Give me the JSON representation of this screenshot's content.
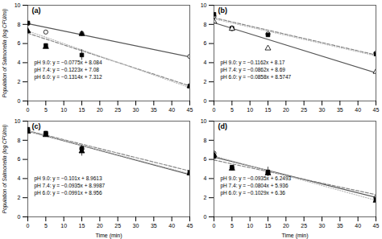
{
  "chart_data": [
    {
      "type": "scatter",
      "title": "(a)",
      "ylabel": "Population of Salmonella (log CFU/ml)",
      "annotations": [
        "pH 9.0: y = −0.0775x + 8.084",
        "pH 7.4: y = −0.1223x + 7.08",
        "pH 6.0: y = −0.1314x + 7.312"
      ],
      "series": [
        {
          "type": "line",
          "line_style": "solid",
          "color": "#555555",
          "slope": -0.0775,
          "intercept": 8.084
        },
        {
          "type": "line",
          "line_style": "dashed",
          "color": "#888888",
          "slope": -0.1223,
          "intercept": 7.08
        },
        {
          "type": "line",
          "line_style": "dotted",
          "color": "#bbbbbb",
          "slope": -0.1314,
          "intercept": 7.312
        },
        {
          "type": "scatter",
          "marker": "open_circle",
          "color": "black",
          "x": [
            0,
            5,
            15,
            45
          ],
          "values": [
            8.1,
            7.2,
            7.05,
            4.65
          ],
          "yerr": [
            0.05,
            0.0,
            0.15,
            0.05
          ]
        },
        {
          "type": "scatter",
          "marker": "square",
          "color": "black",
          "x": [
            0,
            5,
            15,
            45
          ],
          "values": [
            8.15,
            5.8,
            4.8,
            1.55
          ],
          "yerr": [
            0.05,
            0.15,
            0.55,
            0.1
          ]
        },
        {
          "type": "scatter",
          "marker": "triangle",
          "color": "black",
          "x": [
            0,
            5,
            15,
            45
          ],
          "values": [
            7.3,
            5.65,
            7.0,
            1.55
          ],
          "yerr": [
            0.05,
            0.1,
            0.1,
            0.08
          ]
        }
      ],
      "xlim": [
        0,
        45
      ],
      "xticks": [
        0,
        5,
        10,
        15,
        20,
        25,
        30,
        35,
        40,
        45
      ],
      "ylim": [
        0,
        10
      ],
      "yticks": [
        0,
        2,
        4,
        6,
        8,
        10
      ],
      "grid": false
    },
    {
      "type": "scatter",
      "title": "(b)",
      "annotations": [
        "pH 9.0: y = −0.1162x + 8.17",
        "pH 7.4: y = −0.0862x + 8.69",
        "pH 6.0: y = −0.0858x + 8.5747"
      ],
      "series": [
        {
          "type": "line",
          "line_style": "solid",
          "color": "#555555",
          "slope": -0.1162,
          "intercept": 8.17
        },
        {
          "type": "line",
          "line_style": "dashed",
          "color": "#888888",
          "slope": -0.0862,
          "intercept": 8.69
        },
        {
          "type": "line",
          "line_style": "dotted",
          "color": "#bbbbbb",
          "slope": -0.0858,
          "intercept": 8.5747
        },
        {
          "type": "scatter",
          "marker": "open_circle",
          "color": "black",
          "x": [
            0,
            5,
            15,
            45
          ],
          "values": [
            8.85,
            7.55,
            7.0,
            5.0
          ],
          "yerr": [
            0.1,
            0.1,
            0.1,
            0.12
          ]
        },
        {
          "type": "scatter",
          "marker": "square",
          "color": "black",
          "x": [
            0,
            5,
            15,
            45
          ],
          "values": [
            9.05,
            7.6,
            6.9,
            4.9
          ],
          "yerr": [
            0.1,
            0.1,
            0.12,
            0.12
          ]
        },
        {
          "type": "scatter",
          "marker": "open_triangle",
          "color": "black",
          "x": [
            0,
            5,
            15,
            45
          ],
          "values": [
            8.3,
            7.55,
            5.5,
            3.05
          ],
          "yerr": [
            0.1,
            0.1,
            0.15,
            0.1
          ]
        }
      ],
      "xlim": [
        0,
        45
      ],
      "xticks": [
        0,
        5,
        10,
        15,
        20,
        25,
        30,
        35,
        40,
        45
      ],
      "ylim": [
        0,
        10
      ],
      "yticks": [
        0,
        2,
        4,
        6,
        8,
        10
      ],
      "grid": false
    },
    {
      "type": "scatter",
      "title": "(c)",
      "xlabel": "Time (min)",
      "ylabel": "Population of Salmonella (log CFU/ml)",
      "annotations": [
        "pH 9.0: y = −0.101x + 8.9613",
        "pH 7.4: y = −0.0935x + 8.9987",
        "pH 6.0: y = −0.0991x + 8.956"
      ],
      "series": [
        {
          "type": "line",
          "line_style": "solid",
          "color": "#555555",
          "slope": -0.101,
          "intercept": 8.9613
        },
        {
          "type": "line",
          "line_style": "dashed",
          "color": "#888888",
          "slope": -0.0935,
          "intercept": 8.9987
        },
        {
          "type": "line",
          "line_style": "dotted",
          "color": "#bbbbbb",
          "slope": -0.0991,
          "intercept": 8.956
        },
        {
          "type": "scatter",
          "marker": "open_circle",
          "color": "black",
          "x": [
            0,
            5,
            15,
            45
          ],
          "values": [
            9.05,
            8.7,
            7.1,
            4.55
          ],
          "yerr": [
            0.05,
            0.05,
            0.35,
            0.12
          ]
        },
        {
          "type": "scatter",
          "marker": "square",
          "color": "black",
          "x": [
            0,
            5,
            15,
            45
          ],
          "values": [
            9.15,
            8.75,
            7.15,
            4.65
          ],
          "yerr": [
            0.05,
            0.05,
            0.25,
            0.12
          ]
        },
        {
          "type": "scatter",
          "marker": "triangle",
          "color": "black",
          "x": [
            0,
            5,
            15,
            45
          ],
          "values": [
            8.9,
            8.55,
            6.85,
            4.55
          ],
          "yerr": [
            0.05,
            0.05,
            0.5,
            0.12
          ]
        }
      ],
      "xlim": [
        0,
        45
      ],
      "xticks": [
        0,
        5,
        10,
        15,
        20,
        25,
        30,
        35,
        40,
        45
      ],
      "ylim": [
        0,
        10
      ],
      "yticks": [
        0,
        2,
        4,
        6,
        8,
        10
      ],
      "grid": false
    },
    {
      "type": "scatter",
      "title": "(d)",
      "xlabel": "Time (min)",
      "annotations": [
        "pH 9.0: y = −0.0935x + 6.2493",
        "pH 7.4: y = −0.0804x + 5.936",
        "pH 6.0: y = −0.1029x + 6.36"
      ],
      "series": [
        {
          "type": "line",
          "line_style": "solid",
          "color": "#555555",
          "slope": -0.0935,
          "intercept": 6.2493
        },
        {
          "type": "line",
          "line_style": "dashed",
          "color": "#888888",
          "slope": -0.0804,
          "intercept": 5.936
        },
        {
          "type": "line",
          "line_style": "dotted",
          "color": "#bbbbbb",
          "slope": -0.1029,
          "intercept": 6.36
        },
        {
          "type": "scatter",
          "marker": "open_circle",
          "color": "black",
          "x": [
            0,
            5,
            15,
            45
          ],
          "values": [
            6.65,
            5.1,
            4.65,
            2.0
          ],
          "yerr": [
            0.05,
            0.1,
            0.15,
            0.1
          ]
        },
        {
          "type": "scatter",
          "marker": "square",
          "color": "black",
          "x": [
            0,
            5,
            15,
            45
          ],
          "values": [
            6.3,
            5.2,
            4.7,
            1.85
          ],
          "yerr": [
            0.05,
            0.12,
            0.5,
            0.1
          ]
        },
        {
          "type": "scatter",
          "marker": "triangle",
          "color": "black",
          "x": [
            0,
            5,
            15,
            45
          ],
          "values": [
            6.45,
            5.05,
            4.55,
            1.7
          ],
          "yerr": [
            0.05,
            0.1,
            0.15,
            0.1
          ]
        }
      ],
      "xlim": [
        0,
        45
      ],
      "xticks": [
        0,
        5,
        10,
        15,
        20,
        25,
        30,
        35,
        40,
        45
      ],
      "ylim": [
        0,
        10
      ],
      "yticks": [
        0,
        2,
        4,
        6,
        8,
        10
      ],
      "grid": false
    }
  ]
}
